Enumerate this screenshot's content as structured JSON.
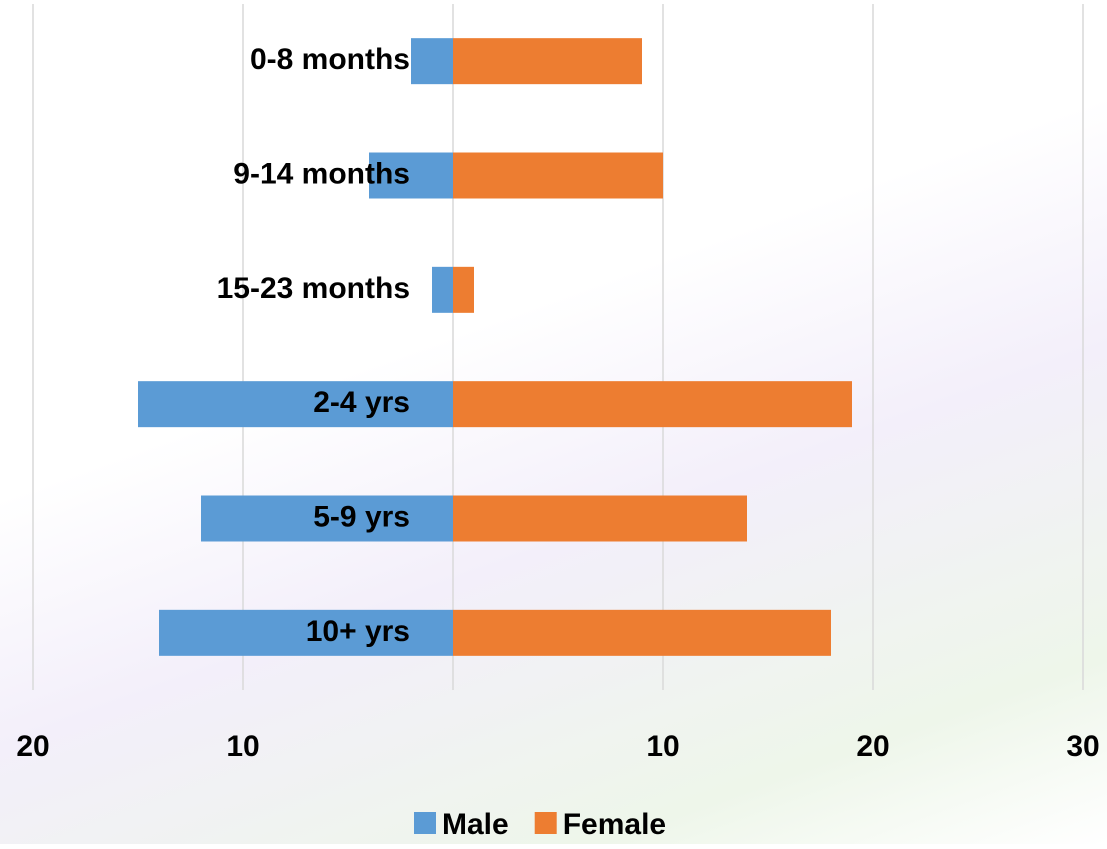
{
  "chart_data": {
    "type": "bar",
    "orientation": "horizontal",
    "categories": [
      "0-8 months",
      "9-14 months",
      "15-23 months",
      "2-4 yrs",
      "5-9 yrs",
      "10+  yrs"
    ],
    "series": [
      {
        "name": "Male",
        "color": "#5b9bd5",
        "values": [
          -2,
          -4,
          -1,
          -15,
          -12,
          -14
        ]
      },
      {
        "name": "Female",
        "color": "#ed7d31",
        "values": [
          9,
          10,
          1,
          19,
          14,
          18
        ]
      }
    ],
    "xlim": [
      -20,
      30
    ],
    "xticks": [
      {
        "value": -20,
        "label": "20"
      },
      {
        "value": -10,
        "label": "10"
      },
      10,
      20,
      30
    ],
    "grid": true,
    "legend": "bottom"
  }
}
